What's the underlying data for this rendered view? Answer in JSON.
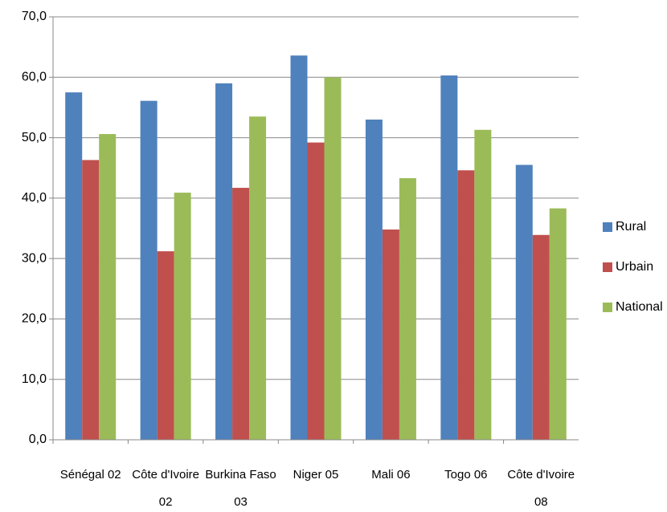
{
  "chart_data": {
    "type": "bar",
    "categories": [
      "Sénégal 02",
      "Côte d'Ivoire 02",
      "Burkina Faso 03",
      "Niger 05",
      "Mali 06",
      "Togo 06",
      "Côte d'Ivoire 08"
    ],
    "series": [
      {
        "name": "Rural",
        "color": "#4f81bd",
        "values": [
          57.5,
          56.1,
          59.0,
          63.6,
          53.0,
          60.3,
          45.5
        ]
      },
      {
        "name": "Urbain",
        "color": "#c0504d",
        "values": [
          46.3,
          31.2,
          41.7,
          49.2,
          34.8,
          44.6,
          33.9
        ]
      },
      {
        "name": "National",
        "color": "#9bbb59",
        "values": [
          50.6,
          40.9,
          53.5,
          60.0,
          43.3,
          51.3,
          38.3
        ]
      }
    ],
    "ylim": [
      0,
      70
    ],
    "yticks": [
      {
        "value": 0,
        "label": "0,0"
      },
      {
        "value": 10,
        "label": "10,0"
      },
      {
        "value": 20,
        "label": "20,0"
      },
      {
        "value": 30,
        "label": "30,0"
      },
      {
        "value": 40,
        "label": "40,0"
      },
      {
        "value": 50,
        "label": "50,0"
      },
      {
        "value": 60,
        "label": "60,0"
      },
      {
        "value": 70,
        "label": "70,0"
      }
    ],
    "grid": true,
    "legend": "right"
  }
}
